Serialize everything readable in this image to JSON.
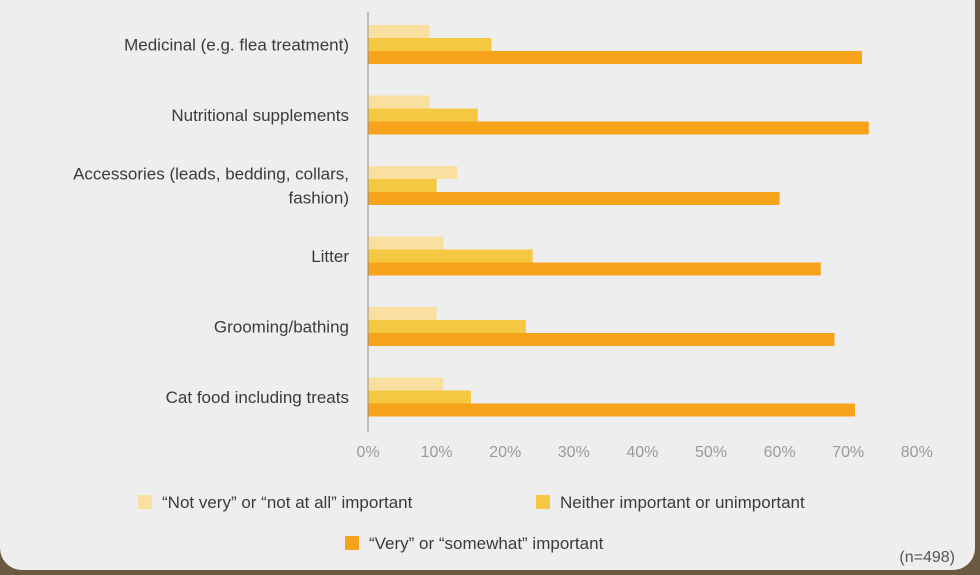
{
  "chart_data": {
    "type": "bar",
    "orientation": "horizontal",
    "categories": [
      [
        "Medicinal (e.g. flea treatment)"
      ],
      [
        "Nutritional supplements"
      ],
      [
        "Accessories (leads, bedding, collars,",
        "fashion)"
      ],
      [
        "Litter"
      ],
      [
        "Grooming/bathing"
      ],
      [
        "Cat food including treats"
      ]
    ],
    "series": [
      {
        "name": "“Not very” or “not at all” important",
        "color": "#f9e0a0",
        "values": [
          9,
          9,
          13,
          11,
          10,
          11
        ]
      },
      {
        "name": "Neither important or unimportant",
        "color": "#f5c842",
        "values": [
          18,
          16,
          10,
          24,
          23,
          15
        ]
      },
      {
        "name": "“Very” or “somewhat” important",
        "color": "#f7a21b",
        "values": [
          72,
          73,
          60,
          66,
          68,
          71
        ]
      }
    ],
    "xlim": [
      0,
      80
    ],
    "xticks": [
      "0%",
      "10%",
      "20%",
      "30%",
      "40%",
      "50%",
      "60%",
      "70%",
      "80%"
    ],
    "legend_position": "bottom",
    "grid": false,
    "note": "(n=498)"
  }
}
